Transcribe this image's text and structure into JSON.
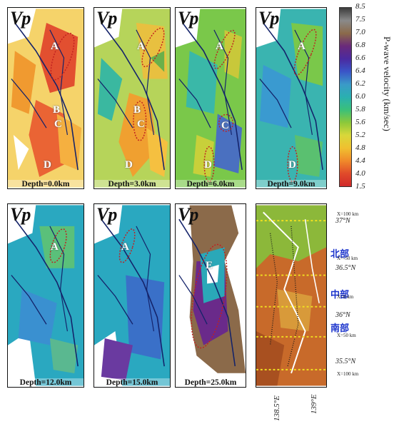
{
  "panels": [
    {
      "vp": "Vp",
      "depth": "Depth=0.0km",
      "zones": [
        "A",
        "B",
        "C",
        "D"
      ]
    },
    {
      "vp": "Vp",
      "depth": "Depth=3.0km",
      "zones": [
        "A",
        "B",
        "C",
        "D"
      ]
    },
    {
      "vp": "Vp",
      "depth": "Depth=6.0km",
      "zones": [
        "A",
        "C",
        "D"
      ]
    },
    {
      "vp": "Vp",
      "depth": "Depth=9.0km",
      "zones": [
        "A",
        "D"
      ]
    },
    {
      "vp": "Vp",
      "depth": "Depth=12.0km",
      "zones": [
        "A"
      ]
    },
    {
      "vp": "Vp",
      "depth": "Depth=15.0km",
      "zones": [
        "A"
      ]
    },
    {
      "vp": "Vp",
      "depth": "Depth=25.0km",
      "zones": [
        "E"
      ]
    }
  ],
  "colorbar": {
    "label": "P-wave velocity (km/sec)",
    "ticks": [
      "8.5",
      "7.5",
      "7.0",
      "6.8",
      "6.6",
      "6.4",
      "6.2",
      "6.0",
      "5.8",
      "5.6",
      "5.2",
      "4.8",
      "4.4",
      "4.0",
      "1.5"
    ],
    "colors": [
      "#3c3c3c",
      "#8a8a8a",
      "#8b6a4a",
      "#6a2a7a",
      "#4b2aa0",
      "#3a55c8",
      "#3a9ac8",
      "#2ab0b0",
      "#3ac07a",
      "#8cc83a",
      "#d8d83a",
      "#f0c030",
      "#f08a2a",
      "#e04a2a",
      "#d02a2a"
    ]
  },
  "regions": {
    "north": "北部",
    "middle": "中部",
    "south": "南部"
  },
  "inset": {
    "lat_labels": [
      "37°N",
      "36.5°N",
      "36°N",
      "35.5°N"
    ],
    "x_labels": [
      "X=100 km",
      "X=-50 km",
      "X=0 km",
      "X=50 km",
      "X=100 km"
    ],
    "lon_labels": [
      "138.5°E",
      "139°E"
    ]
  }
}
